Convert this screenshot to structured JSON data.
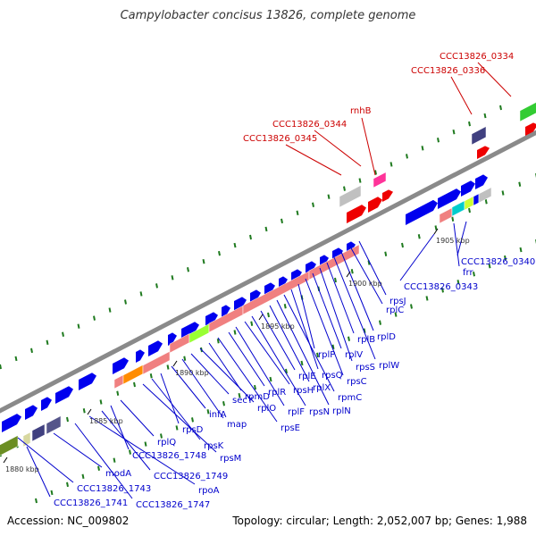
{
  "title": "Campylobacter concisus 13826, complete genome",
  "footer": {
    "accession": "Accession: NC_009802",
    "stats": "Topology: circular; Length: 2,052,007 bp; Genes: 1,988"
  },
  "colors": {
    "backbone": "#8a8a8a",
    "tick": "#1f7a1f",
    "blue_gene": "#0000ee",
    "red_gene": "#ee0000",
    "salmon_gene": "#f08080",
    "orange_gene": "#ff8c00",
    "lime_gene": "#99ff33",
    "green_gene": "#33cc33",
    "olive_gene": "#6b8e23",
    "navy_gene": "#404080",
    "gray_gene": "#c0c0c0",
    "pink_gene": "#ff3399",
    "cyan_gene": "#00cccc",
    "yellow_gene": "#ccff33",
    "label_blue": "#0000cc",
    "label_red": "#cc0000"
  },
  "scale_labels": [
    "1880 kbp",
    "1885 kbp",
    "1890 kbp",
    "1895 kbp",
    "1900 kbp",
    "1905 kbp"
  ],
  "top_labels": [
    "rnhB",
    "CCC13826_0344",
    "CCC13826_0345",
    "CCC13826_0334",
    "CCC13826_0336"
  ],
  "bottom_labels": [
    "CCC13826_1741",
    "CCC13826_1743",
    "modA",
    "CCC13826_1747",
    "rpoA",
    "CCC13826_1749",
    "CCC13826_1748",
    "rplQ",
    "rpsM",
    "rpsK",
    "rpsD",
    "infA",
    "map",
    "secY",
    "rplO",
    "rpmD",
    "rpsE",
    "rplR",
    "rplF",
    "rpsH",
    "rpsN",
    "rplE",
    "rplX",
    "rplN",
    "rpmC",
    "rpsQ",
    "rplP",
    "rpsC",
    "rplV",
    "rpsS",
    "rplB",
    "rplW",
    "rplD",
    "rplC",
    "rpsJ",
    "CCC13826_0343",
    "frr",
    "CCC13826_0340"
  ]
}
